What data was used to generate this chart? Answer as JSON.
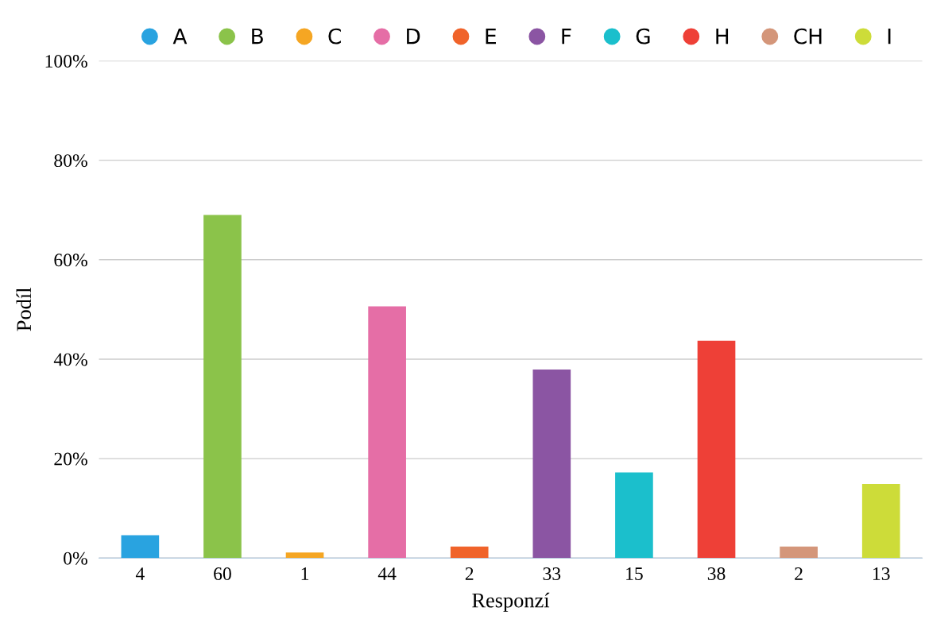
{
  "chart_data": {
    "type": "bar",
    "xlabel": "Responzí",
    "ylabel": "Podíl",
    "categories": [
      "4",
      "60",
      "1",
      "44",
      "2",
      "33",
      "15",
      "38",
      "2",
      "13"
    ],
    "series": [
      {
        "name": "A",
        "color": "#29a3e0",
        "values": [
          4.6,
          null,
          null,
          null,
          null,
          null,
          null,
          null,
          null,
          null
        ]
      },
      {
        "name": "B",
        "color": "#8bc34a",
        "values": [
          null,
          69.0,
          null,
          null,
          null,
          null,
          null,
          null,
          null,
          null
        ]
      },
      {
        "name": "C",
        "color": "#f5a623",
        "values": [
          null,
          null,
          1.1,
          null,
          null,
          null,
          null,
          null,
          null,
          null
        ]
      },
      {
        "name": "D",
        "color": "#e56ea6",
        "values": [
          null,
          null,
          null,
          50.6,
          null,
          null,
          null,
          null,
          null,
          null
        ]
      },
      {
        "name": "E",
        "color": "#f0632a",
        "values": [
          null,
          null,
          null,
          null,
          2.3,
          null,
          null,
          null,
          null,
          null
        ]
      },
      {
        "name": "F",
        "color": "#8b55a3",
        "values": [
          null,
          null,
          null,
          null,
          null,
          37.9,
          null,
          null,
          null,
          null
        ]
      },
      {
        "name": "G",
        "color": "#1bbfcc",
        "values": [
          null,
          null,
          null,
          null,
          null,
          null,
          17.2,
          null,
          null,
          null
        ]
      },
      {
        "name": "H",
        "color": "#ee4037",
        "values": [
          null,
          null,
          null,
          null,
          null,
          null,
          null,
          43.7,
          null,
          null
        ]
      },
      {
        "name": "CH",
        "color": "#d4967a",
        "values": [
          null,
          null,
          null,
          null,
          null,
          null,
          null,
          null,
          2.3,
          null
        ]
      },
      {
        "name": "I",
        "color": "#cddc39",
        "values": [
          null,
          null,
          null,
          null,
          null,
          null,
          null,
          null,
          null,
          14.9
        ]
      }
    ],
    "ylim": [
      0,
      100
    ],
    "yticks": [
      {
        "value": 0,
        "label": "0%"
      },
      {
        "value": 20,
        "label": "20%"
      },
      {
        "value": 40,
        "label": "40%"
      },
      {
        "value": 60,
        "label": "60%"
      },
      {
        "value": 80,
        "label": "80%"
      },
      {
        "value": 100,
        "label": "100%"
      }
    ],
    "grid": "y",
    "legend": "top"
  }
}
